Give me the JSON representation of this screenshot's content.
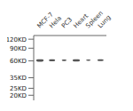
{
  "chart_data": {
    "type": "range_bar",
    "categories": [
      "MCF-7",
      "Hela",
      "PC3",
      "Heart",
      "Spleen",
      "Lung"
    ],
    "values": [
      [
        58.5,
        63.4
      ],
      [
        59.25,
        63.1
      ],
      [
        59.75,
        62.9
      ],
      [
        58.75,
        63.3
      ],
      [
        60,
        62.8
      ],
      [
        59.5,
        63
      ]
    ],
    "widths": [
      0.6,
      0.5,
      0.38,
      0.58,
      0.36,
      0.5
    ],
    "color": "#555555",
    "log": "y",
    "ylim": [
      17,
      135
    ],
    "yticks": [
      {
        "value": 120,
        "label": "120KD"
      },
      {
        "value": 90,
        "label": "90KD"
      },
      {
        "value": 60,
        "label": "60KD"
      },
      {
        "value": 35,
        "label": "35KD"
      },
      {
        "value": 25,
        "label": "25KD"
      },
      {
        "value": 20,
        "label": "20KD"
      }
    ],
    "grid": false
  }
}
